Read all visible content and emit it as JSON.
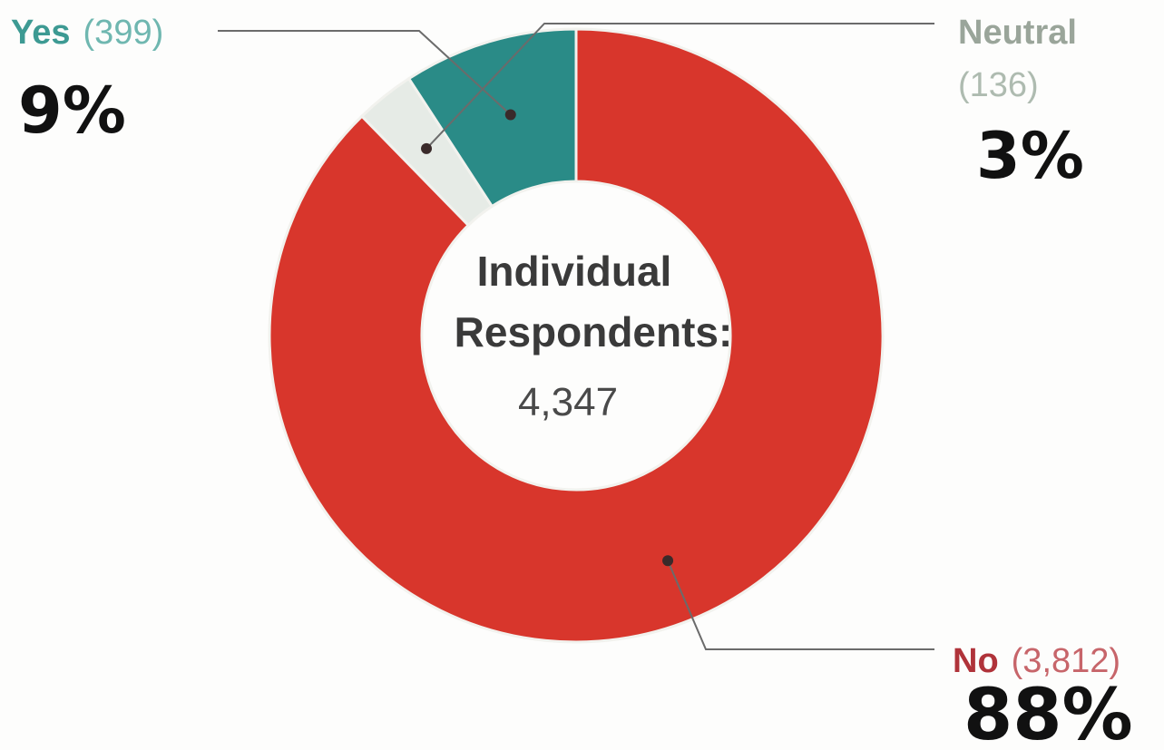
{
  "chart_data": {
    "type": "pie",
    "donut": true,
    "title": "",
    "center_label": [
      "Individual",
      "Respondents:"
    ],
    "center_value": "4,347",
    "slices": [
      {
        "name": "No",
        "count_text": "(3,812)",
        "value": 3812,
        "percent_note": "88%",
        "color": "#d8362c"
      },
      {
        "name": "Neutral",
        "count_text": "(136)",
        "value": 136,
        "percent_note": "3%",
        "color": "#e6ebe6"
      },
      {
        "name": "Yes",
        "count_text": "(399)",
        "value": 399,
        "percent_note": "9%",
        "color": "#2a8b87"
      }
    ],
    "label_colors": {
      "Yes": "#3d9a93",
      "Neutral": "#9aa59a",
      "No": "#b0333a"
    },
    "total": 4347,
    "legend": "none"
  }
}
